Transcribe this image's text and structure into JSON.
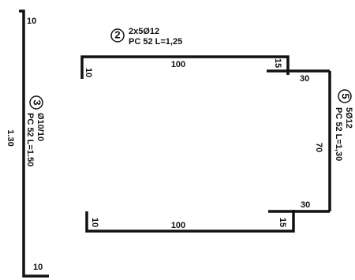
{
  "left_bar": {
    "mark": "3",
    "spec": "Ø10/10",
    "detail": "PC 52 L=1.50",
    "top_hook": "10",
    "length": "1.30",
    "bottom_hook": "10"
  },
  "top_bar": {
    "mark": "2",
    "spec": "2x5Ø12",
    "detail": "PC 52 L=1,25",
    "length": "100",
    "left_leg": "10",
    "right_leg": "15",
    "end_leg": "30"
  },
  "bottom_bar": {
    "length": "100",
    "left_leg": "10",
    "right_leg": "15",
    "end_leg": "30"
  },
  "right_bar": {
    "mark": "5",
    "spec": "5Ø12",
    "detail": "PC 52 L=1,30",
    "length": "70"
  }
}
